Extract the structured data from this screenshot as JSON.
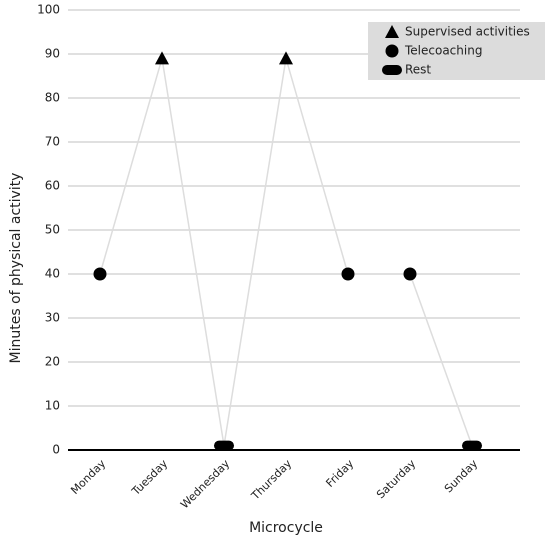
{
  "chart_data": {
    "type": "line",
    "x_label": "Microcycle",
    "y_label": "Minutes of physical activity",
    "categories": [
      "Monday",
      "Tuesday",
      "Wednesday",
      "Thursday",
      "Friday",
      "Saturday",
      "Sunday"
    ],
    "series": [
      {
        "name": "Supervised activities",
        "color": "#000000",
        "marker": "triangle",
        "values": [
          null,
          89,
          null,
          89,
          null,
          null,
          null
        ]
      },
      {
        "name": "Telecoaching",
        "color": "#000000",
        "marker": "circle",
        "values": [
          40,
          null,
          null,
          null,
          40,
          40,
          null
        ]
      },
      {
        "name": "Rest",
        "color": "#000000",
        "marker": "pill",
        "values": [
          null,
          null,
          1,
          null,
          null,
          null,
          1
        ]
      }
    ],
    "line_color": "#dddddd",
    "ylim": [
      0,
      100
    ],
    "yticks": [
      0,
      10,
      20,
      30,
      40,
      50,
      60,
      70,
      80,
      90,
      100
    ],
    "grid": true,
    "legend": "upper right"
  }
}
